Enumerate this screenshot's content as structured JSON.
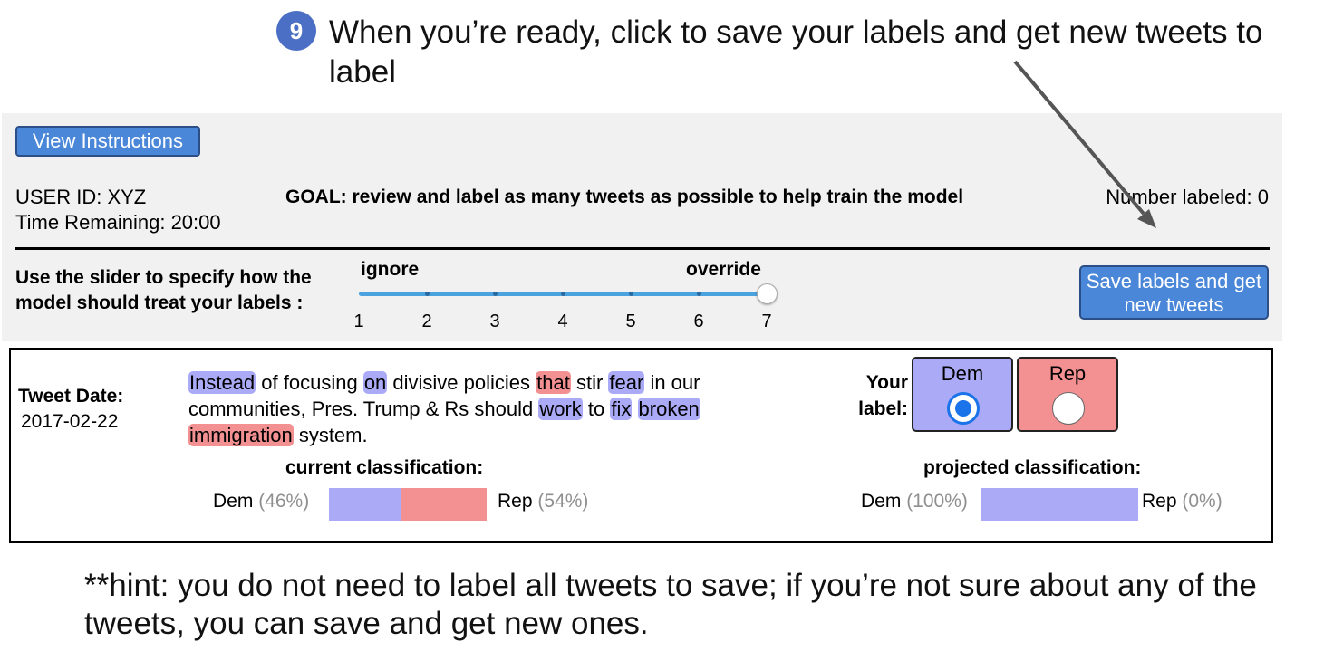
{
  "annotation": {
    "step_number": "9",
    "step_text": "When you’re ready, click to save your labels and get new tweets to label",
    "hint_text": "**hint: you do not need to label all tweets to save; if you’re not sure about any of the tweets, you can save and get new ones."
  },
  "header": {
    "view_instructions_label": "View Instructions",
    "user_id": "USER ID: XYZ",
    "time_remaining": "Time Remaining: 20:00",
    "goal": "GOAL: review and label as many tweets as possible to help train the model",
    "number_labeled": "Number labeled: 0"
  },
  "slider": {
    "instruction": "Use the slider to specify how the model should treat your labels :",
    "left_label": "ignore",
    "right_label": "override",
    "ticks": [
      "1",
      "2",
      "3",
      "4",
      "5",
      "6",
      "7"
    ],
    "value": 7
  },
  "save_button_label": "Save labels and get new tweets",
  "tweet": {
    "date_label": "Tweet Date:",
    "date": "2017-02-22",
    "text_segments": [
      {
        "t": "Instead",
        "hl": "blue"
      },
      {
        "t": " of focusing ",
        "hl": ""
      },
      {
        "t": "on",
        "hl": "blue"
      },
      {
        "t": " divisive policies ",
        "hl": ""
      },
      {
        "t": "that",
        "hl": "red"
      },
      {
        "t": " stir ",
        "hl": ""
      },
      {
        "t": "fear",
        "hl": "blue"
      },
      {
        "t": " in our communities, Pres. Trump & Rs should ",
        "hl": ""
      },
      {
        "t": "work",
        "hl": "blue"
      },
      {
        "t": " to ",
        "hl": ""
      },
      {
        "t": "fix",
        "hl": "blue"
      },
      {
        "t": " ",
        "hl": ""
      },
      {
        "t": "broken",
        "hl": "blue"
      },
      {
        "t": " ",
        "hl": ""
      },
      {
        "t": "immigration",
        "hl": "red"
      },
      {
        "t": " system.",
        "hl": ""
      }
    ],
    "your_label": "Your label:",
    "options": [
      {
        "label": "Dem",
        "selected": true
      },
      {
        "label": "Rep",
        "selected": false
      }
    ]
  },
  "current_classification": {
    "title": "current classification:",
    "dem_label": "Dem",
    "dem_pct": "(46%)",
    "dem_value": 0.46,
    "rep_label": "Rep",
    "rep_pct": "(54%)",
    "rep_value": 0.54
  },
  "projected_classification": {
    "title": "projected classification:",
    "dem_label": "Dem",
    "dem_pct": "(100%)",
    "dem_value": 1.0,
    "rep_label": "Rep",
    "rep_pct": "(0%)",
    "rep_value": 0.0
  },
  "colors": {
    "dem": "#aaaaf7",
    "rep": "#f39092",
    "button": "#4b87d8",
    "radio_selected": "#1a73e8"
  }
}
